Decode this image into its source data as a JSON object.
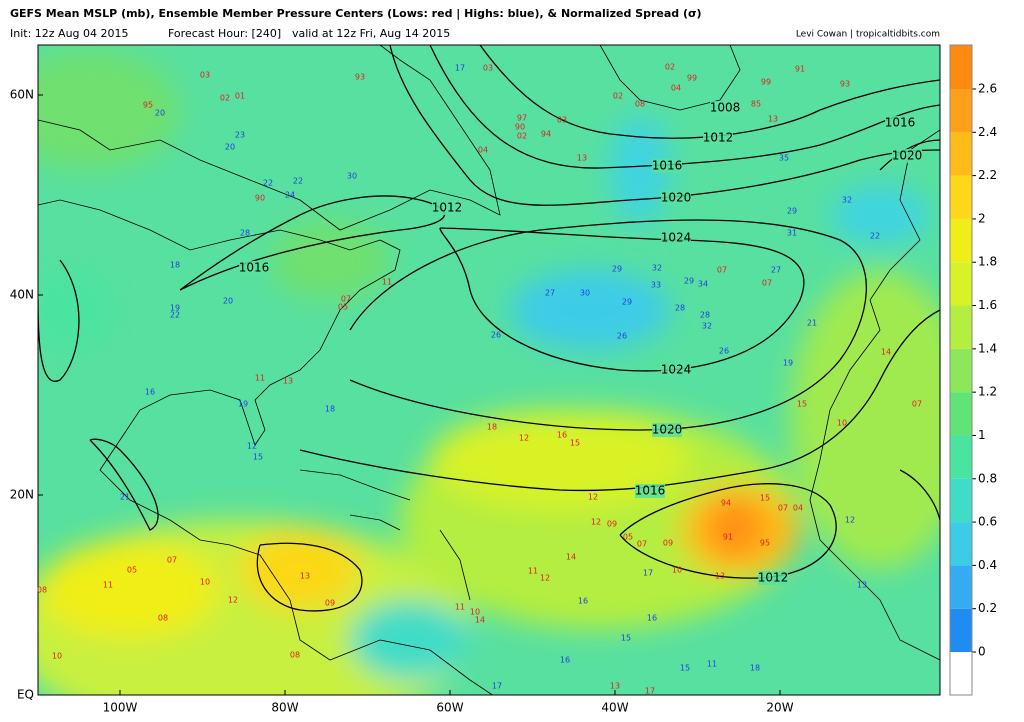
{
  "header": {
    "title": "GEFS Mean MSLP (mb), Ensemble Member Pressure Centers (Lows: red | Highs: blue), & Normalized Spread (σ)",
    "init": "Init: 12z Aug 04 2015",
    "forecast_hour": "Forecast Hour: [240]",
    "valid": "valid at 12z Fri, Aug 14 2015",
    "credit": "Levi Cowan | tropicaltidbits.com"
  },
  "axes": {
    "lat_labels": [
      "60N",
      "40N",
      "20N",
      "EQ"
    ],
    "lon_labels": [
      "100W",
      "80W",
      "60W",
      "40W",
      "20W"
    ]
  },
  "colorbar": {
    "ticks": [
      0,
      0.2,
      0.4,
      0.6,
      0.8,
      1,
      1.2,
      1.4,
      1.6,
      1.8,
      2,
      2.2,
      2.4,
      2.6
    ],
    "colors": [
      "#1e8cf0",
      "#34acf4",
      "#3ccce8",
      "#40dcc8",
      "#48e4a0",
      "#60e478",
      "#8ce858",
      "#b4ee40",
      "#d8f228",
      "#f0ee18",
      "#fcd818",
      "#ffbc18",
      "#ffa018",
      "#ff8a10"
    ],
    "below_color": "#ffffff"
  },
  "isobar_labels": [
    "1008",
    "1012",
    "1016",
    "1020",
    "1024",
    "1024",
    "1020",
    "1016",
    "1012",
    "1012",
    "1016",
    "1016",
    "1020"
  ],
  "lows": [
    "93",
    "03",
    "02",
    "01",
    "95",
    "03",
    "97",
    "90",
    "02",
    "94",
    "03",
    "04",
    "13",
    "02",
    "99",
    "99",
    "91",
    "93",
    "04",
    "02",
    "08",
    "85",
    "13",
    "90",
    "12",
    "16",
    "15",
    "18",
    "12",
    "12",
    "09",
    "05",
    "07",
    "09",
    "14",
    "11",
    "12",
    "94",
    "15",
    "07",
    "04",
    "91",
    "95",
    "13",
    "10",
    "07",
    "07",
    "15",
    "10",
    "07",
    "14",
    "05",
    "07",
    "11",
    "11",
    "13",
    "05",
    "11",
    "07",
    "10",
    "08",
    "12",
    "08",
    "13",
    "09",
    "08",
    "11",
    "10",
    "14",
    "10",
    "13",
    "17"
  ],
  "highs": [
    "17",
    "20",
    "23",
    "20",
    "30",
    "22",
    "22",
    "24",
    "28",
    "18",
    "20",
    "19",
    "22",
    "35",
    "32",
    "22",
    "29",
    "27",
    "31",
    "27",
    "30",
    "29",
    "32",
    "33",
    "29",
    "28",
    "29",
    "34",
    "28",
    "32",
    "26",
    "26",
    "26",
    "18",
    "16",
    "19",
    "12",
    "15",
    "21",
    "16",
    "15",
    "16",
    "17",
    "13",
    "12",
    "19",
    "21",
    "16",
    "17",
    "15",
    "11",
    "18"
  ]
}
